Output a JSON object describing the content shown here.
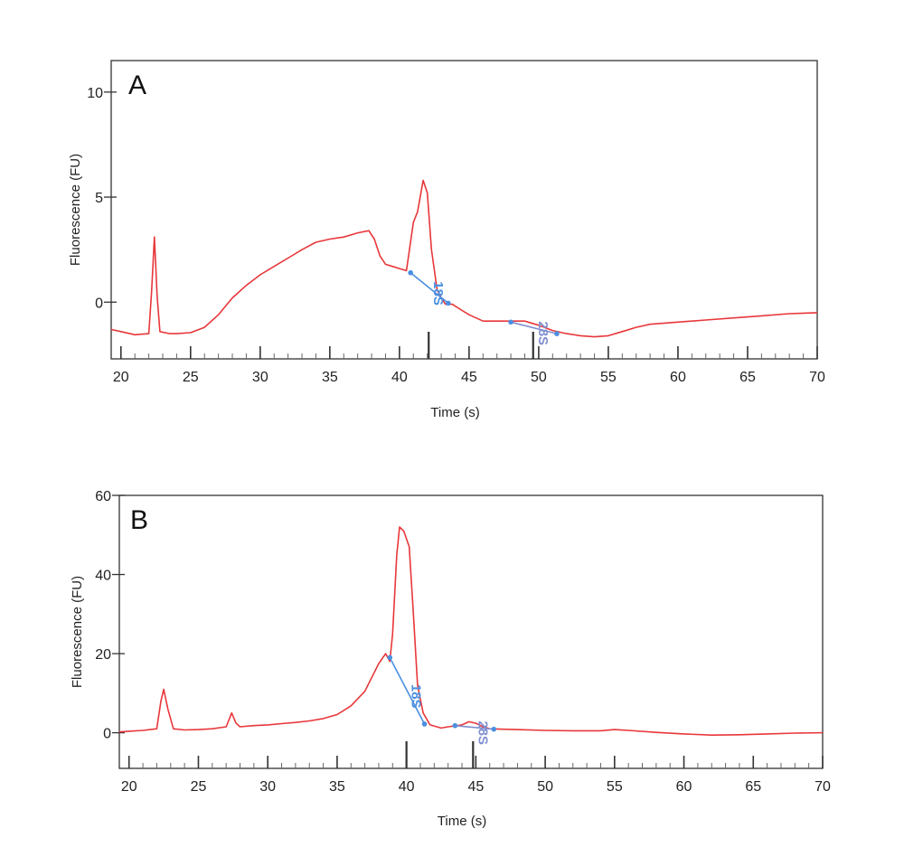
{
  "chart_data": [
    {
      "type": "line",
      "panel_label": "A",
      "xlabel": "Time (s)",
      "ylabel": "Fluorescence (FU)",
      "xlim": [
        19.3,
        70
      ],
      "ylim": [
        -2.7,
        11.5
      ],
      "x_ticks": [
        20,
        25,
        30,
        35,
        40,
        45,
        50,
        55,
        60,
        65,
        70
      ],
      "y_ticks": [
        0,
        5,
        10
      ],
      "line_color": "#e8373a",
      "marker_color": "#4a8fe0",
      "series": [
        {
          "x": [
            19.3,
            20,
            21,
            22,
            22.2,
            22.4,
            22.6,
            22.8,
            23.5,
            24,
            25,
            26,
            27,
            27.5,
            28,
            29,
            30,
            31,
            32,
            33,
            34,
            35,
            36,
            37,
            37.8,
            38.2,
            38.6,
            39,
            39.5,
            40,
            40.5,
            41,
            41.3,
            41.7,
            42,
            42.3,
            42.7,
            43,
            43.3,
            43.8,
            44.5,
            45,
            46,
            47,
            48,
            49,
            50,
            51,
            52,
            53,
            54,
            55,
            56,
            57,
            58,
            60,
            62,
            64,
            66,
            68,
            70
          ],
          "y": [
            -1.3,
            -1.4,
            -1.55,
            -1.5,
            0.5,
            3.1,
            0.3,
            -1.4,
            -1.5,
            -1.5,
            -1.45,
            -1.2,
            -0.6,
            -0.2,
            0.2,
            0.8,
            1.3,
            1.7,
            2.1,
            2.5,
            2.85,
            3.0,
            3.1,
            3.3,
            3.4,
            3.0,
            2.2,
            1.8,
            1.7,
            1.6,
            1.5,
            3.8,
            4.3,
            5.8,
            5.2,
            2.5,
            0.6,
            0.2,
            -0.1,
            -0.1,
            -0.4,
            -0.6,
            -0.9,
            -0.9,
            -0.9,
            -0.9,
            -1.1,
            -1.35,
            -1.5,
            -1.6,
            -1.65,
            -1.6,
            -1.4,
            -1.2,
            -1.05,
            -0.95,
            -0.85,
            -0.75,
            -0.65,
            -0.55,
            -0.5
          ]
        }
      ],
      "peaks": [
        {
          "label": "18S",
          "x": 42.1,
          "start": [
            40.8,
            1.4
          ],
          "end": [
            43.5,
            -0.05
          ],
          "color": "#4a8fe0"
        },
        {
          "label": "28S",
          "x": 49.6,
          "start": [
            48.0,
            -0.95
          ],
          "end": [
            51.3,
            -1.5
          ],
          "color": "#7f8fd0"
        }
      ]
    },
    {
      "type": "line",
      "panel_label": "B",
      "xlabel": "Time (s)",
      "ylabel": "Fluorescence (FU)",
      "xlim": [
        19.3,
        70
      ],
      "ylim": [
        -9,
        60
      ],
      "x_ticks": [
        20,
        25,
        30,
        35,
        40,
        45,
        50,
        55,
        60,
        65,
        70
      ],
      "y_ticks": [
        0,
        20,
        40,
        60
      ],
      "line_color": "#e8373a",
      "marker_color": "#4a8fe0",
      "series": [
        {
          "x": [
            19.3,
            20,
            21,
            22,
            22.3,
            22.5,
            22.8,
            23.2,
            24,
            25,
            26,
            27,
            27.4,
            27.7,
            28,
            29,
            30,
            31,
            32,
            33,
            34,
            35,
            36,
            37,
            37.5,
            38,
            38.5,
            38.8,
            39,
            39.3,
            39.5,
            39.8,
            40.2,
            40.5,
            40.8,
            41.2,
            41.7,
            42.5,
            43,
            44,
            44.5,
            45,
            45.5,
            46,
            47,
            48,
            50,
            52,
            54,
            55,
            56,
            58,
            60,
            62,
            64,
            66,
            68,
            70
          ],
          "y": [
            0.2,
            0.4,
            0.6,
            1.0,
            8.0,
            11.0,
            6.0,
            1.0,
            0.7,
            0.8,
            1.0,
            1.5,
            5.0,
            2.5,
            1.5,
            1.8,
            2.0,
            2.3,
            2.6,
            3.0,
            3.6,
            4.6,
            6.8,
            10.5,
            14.0,
            17.5,
            20.0,
            18.0,
            25.0,
            45.0,
            52.0,
            51.0,
            47.0,
            30.0,
            12.0,
            5.0,
            2.0,
            1.2,
            1.5,
            2.0,
            2.8,
            2.4,
            1.5,
            1.0,
            0.9,
            0.8,
            0.6,
            0.5,
            0.5,
            0.8,
            0.6,
            0.1,
            -0.3,
            -0.6,
            -0.5,
            -0.3,
            -0.1,
            0.0
          ]
        }
      ],
      "peaks": [
        {
          "label": "18S",
          "x": 40.0,
          "start": [
            38.8,
            19.0
          ],
          "end": [
            41.3,
            2.2
          ],
          "color": "#4a8fe0"
        },
        {
          "label": "28S",
          "x": 44.8,
          "start": [
            43.5,
            1.8
          ],
          "end": [
            46.3,
            0.9
          ],
          "color": "#7f8fd0"
        }
      ]
    }
  ]
}
